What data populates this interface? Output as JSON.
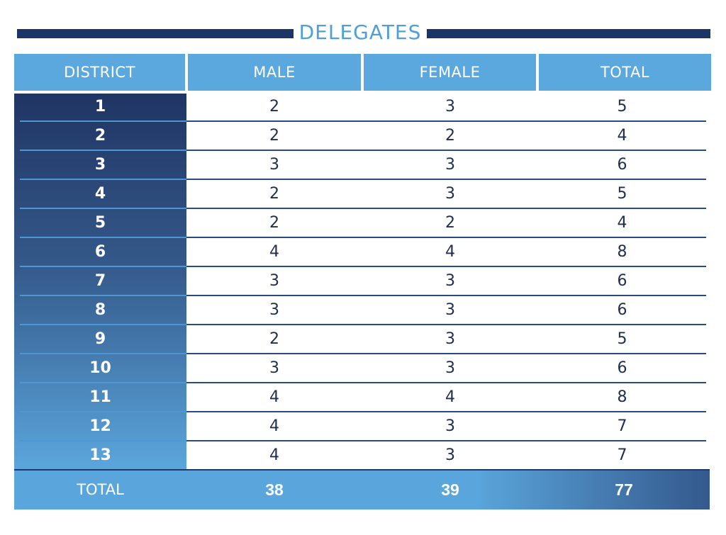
{
  "chart_data": {
    "type": "table",
    "title": "DELEGATES",
    "columns": [
      "DISTRICT",
      "MALE",
      "FEMALE",
      "TOTAL"
    ],
    "rows": [
      [
        "1",
        "2",
        "3",
        "5"
      ],
      [
        "2",
        "2",
        "2",
        "4"
      ],
      [
        "3",
        "3",
        "3",
        "6"
      ],
      [
        "4",
        "2",
        "3",
        "5"
      ],
      [
        "5",
        "2",
        "2",
        "4"
      ],
      [
        "6",
        "4",
        "4",
        "8"
      ],
      [
        "7",
        "3",
        "3",
        "6"
      ],
      [
        "8",
        "3",
        "3",
        "6"
      ],
      [
        "9",
        "2",
        "3",
        "5"
      ],
      [
        "10",
        "3",
        "3",
        "6"
      ],
      [
        "11",
        "4",
        "4",
        "8"
      ],
      [
        "12",
        "4",
        "3",
        "7"
      ],
      [
        "13",
        "4",
        "3",
        "7"
      ]
    ],
    "totals": {
      "label": "TOTAL",
      "male": "38",
      "female": "39",
      "total": "77"
    }
  },
  "colors": {
    "header_bg": "#5ba8de",
    "title_text": "#4f9fd6",
    "title_rule": "#1b3566",
    "district_top": "#203564",
    "district_bottom": "#5aa6dc",
    "row_separator": "#2a4a84"
  }
}
